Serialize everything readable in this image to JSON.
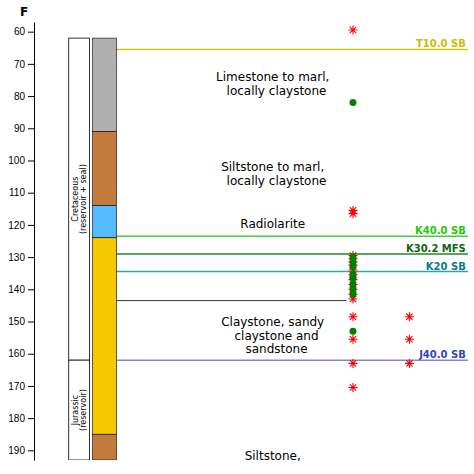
{
  "chart_data": {
    "type": "stratigraphic_column",
    "y_label": "F",
    "ylim": [
      193,
      57
    ],
    "yticks": [
      60,
      70,
      80,
      90,
      100,
      110,
      120,
      130,
      140,
      150,
      160,
      170,
      180,
      190
    ],
    "grid": false,
    "tick_labels": "y",
    "lithology": [
      {
        "color": "#b0b0b0",
        "top": 62,
        "bottom": 91
      },
      {
        "color": "#c47a3a",
        "top": 91,
        "bottom": 114
      },
      {
        "color": "#55bbff",
        "top": 114,
        "bottom": 124
      },
      {
        "color": "#f5c800",
        "top": 124,
        "bottom": 185
      },
      {
        "color": "#c47a3a",
        "top": 185,
        "bottom": 193
      }
    ],
    "eras": [
      {
        "label": "Cretaceous\n(reservoir + seal)",
        "top": 62,
        "bottom": 162
      },
      {
        "label": "Jurassic\n(reservoir)",
        "top": 162,
        "bottom": 193
      }
    ],
    "horizons": [
      {
        "y": 65.5,
        "color": "#d4c800",
        "label": "T10.0 SB",
        "label_color": "#ccbb00"
      },
      {
        "y": 123.5,
        "color": "#44cc44",
        "label": "K40.0 SB",
        "label_color": "#22cc00"
      },
      {
        "y": 129.0,
        "color": "#228822",
        "label": "K30.2 MFS",
        "label_color": "#116611"
      },
      {
        "y": 134.5,
        "color": "#22aaaa",
        "label": "K20 SB",
        "label_color": "#117788"
      },
      {
        "y": 162.0,
        "color": "#8888cc",
        "label": "J40.0 SB",
        "label_color": "#3344bb"
      }
    ],
    "separators": [
      {
        "y": 143.5,
        "color": "#333333"
      }
    ],
    "annotations": [
      {
        "text": "Limestone to marl,\n  locally claystone",
        "y": 72
      },
      {
        "text": "Siltstone to marl,\n  locally claystone",
        "y": 100
      },
      {
        "text": "Radiolarite",
        "y": 117.5
      },
      {
        "text": "Claystone, sandy\n  claystone and\n  sandstone",
        "y": 148
      },
      {
        "text": "Siltstone,",
        "y": 189.5
      }
    ],
    "series": [
      {
        "color": "red",
        "marker": "asterisk",
        "values": [
          59.5,
          115.5,
          116.5,
          129.5,
          130.5,
          131.5,
          132.5,
          134.0,
          135.5,
          137.0,
          138.5,
          140.0,
          141.5,
          143.0,
          148.5,
          155.5,
          163.0,
          170.5
        ]
      },
      {
        "color": "red",
        "marker": "asterisk",
        "values": [
          148.5,
          155.5,
          163.0
        ]
      },
      {
        "color": "green",
        "marker": "circle",
        "values": [
          82.0,
          130.0,
          131.5,
          133.0,
          135.5,
          136.5,
          138.5,
          140.0,
          141.5,
          153.0
        ]
      }
    ]
  }
}
